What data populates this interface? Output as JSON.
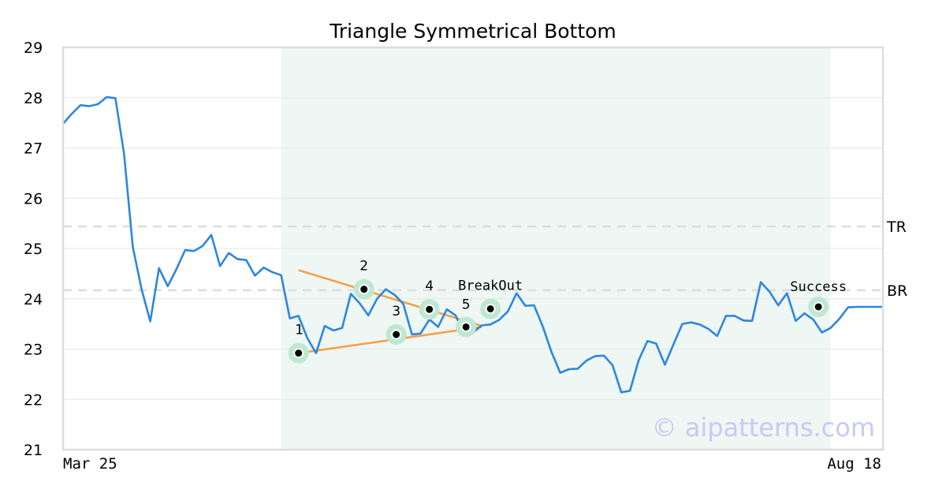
{
  "chart_data": {
    "type": "line",
    "title": "Triangle Symmetrical Bottom",
    "ylim": [
      21,
      29
    ],
    "yticks": [
      21,
      22,
      23,
      24,
      25,
      26,
      27,
      28,
      29
    ],
    "x_start_label": "Mar 25",
    "x_end_label": "Aug 18",
    "n_points": 95,
    "series": [
      {
        "values": [
          27.48,
          27.68,
          27.85,
          27.83,
          27.87,
          28.01,
          27.99,
          26.88,
          25.03,
          24.19,
          23.55,
          24.61,
          24.25,
          24.59,
          24.97,
          24.95,
          25.05,
          25.27,
          24.65,
          24.91,
          24.79,
          24.77,
          24.46,
          24.62,
          24.53,
          24.47,
          23.61,
          23.66,
          23.22,
          22.92,
          23.46,
          23.37,
          23.42,
          24.1,
          23.91,
          23.67,
          24.0,
          24.19,
          24.08,
          23.9,
          23.29,
          23.31,
          23.59,
          23.44,
          23.79,
          23.67,
          23.3,
          23.33,
          23.47,
          23.49,
          23.58,
          23.75,
          24.11,
          23.86,
          23.87,
          23.45,
          22.94,
          22.53,
          22.6,
          22.61,
          22.77,
          22.86,
          22.87,
          22.68,
          22.14,
          22.17,
          22.78,
          23.16,
          23.11,
          22.69,
          23.1,
          23.5,
          23.53,
          23.49,
          23.4,
          23.26,
          23.66,
          23.66,
          23.57,
          23.56,
          24.33,
          24.14,
          23.87,
          24.11,
          23.56,
          23.71,
          23.59,
          23.33,
          23.42,
          23.6,
          23.83,
          23.84,
          23.84,
          23.84,
          23.84
        ]
      }
    ],
    "shaded_region": {
      "from_index": 25,
      "to_index": 88
    },
    "levels": [
      {
        "label": "TR",
        "value": 25.44
      },
      {
        "label": "BR",
        "value": 24.17
      }
    ],
    "pattern_points": [
      {
        "label": "1",
        "index": 27,
        "value": 22.92
      },
      {
        "label": "2",
        "index": 34.5,
        "value": 24.19
      },
      {
        "label": "3",
        "index": 38.2,
        "value": 23.29
      },
      {
        "label": "4",
        "index": 42,
        "value": 23.79
      },
      {
        "label": "5",
        "index": 46.2,
        "value": 23.44
      },
      {
        "label": "BreakOut",
        "index": 49,
        "value": 23.8
      },
      {
        "label": "Success",
        "index": 86.6,
        "value": 23.84
      }
    ],
    "trend_lines": [
      {
        "from": {
          "index": 27,
          "value": 24.57
        },
        "to": {
          "index": 48,
          "value": 23.46
        }
      },
      {
        "from": {
          "index": 27,
          "value": 22.92
        },
        "to": {
          "index": 48,
          "value": 23.44
        }
      }
    ],
    "watermark": "© aipatterns.com",
    "colors": {
      "line": "#2e86de",
      "trend": "#f7a04a",
      "shade": "#eef7f3",
      "marker_halo": "#bfe8d2",
      "level_dash": "#dddddd",
      "grid": "#e6e6e6",
      "frame": "#dddddd"
    }
  }
}
